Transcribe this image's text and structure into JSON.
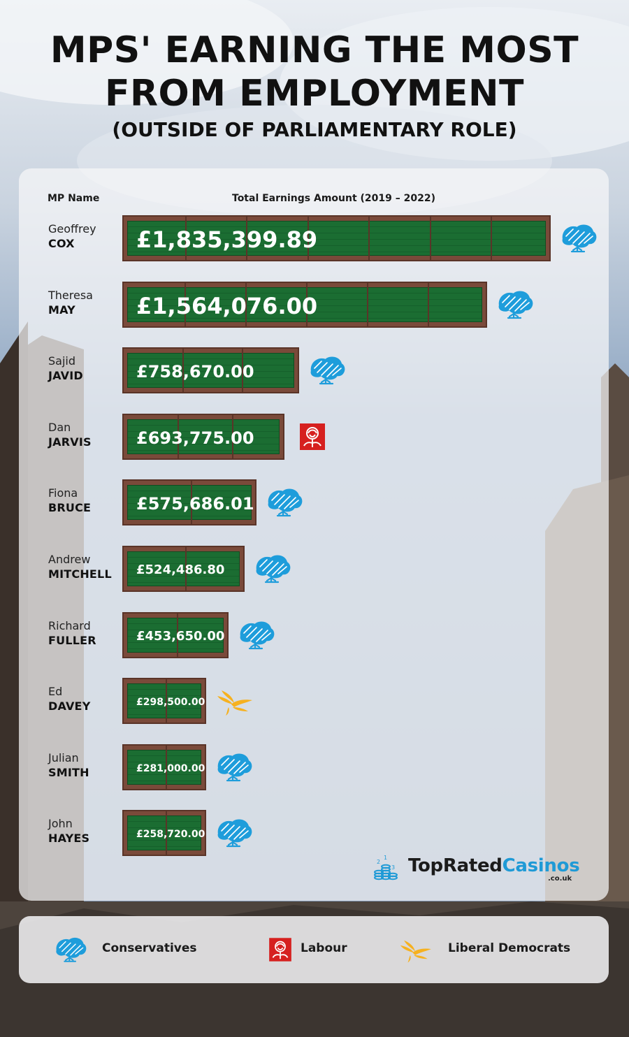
{
  "title_line1": "MPS' EARNING THE MOST",
  "title_line2": "FROM EMPLOYMENT",
  "subtitle": "(OUTSIDE OF PARLIAMENTARY ROLE)",
  "headers": {
    "name": "MP Name",
    "earnings": "Total Earnings Amount (2019 – 2022)"
  },
  "brand": {
    "part1": "TopRated",
    "part2": "Casinos",
    "suffix": ".co.uk"
  },
  "colors": {
    "conservative": "#1e9ddb",
    "labour": "#d6201f",
    "libdem": "#f6b11f",
    "bar_green": "#1b6d32",
    "bar_frame": "#7a4a3a"
  },
  "legend": [
    {
      "party": "conservative",
      "icon": "tree-icon",
      "label": "Conservatives"
    },
    {
      "party": "labour",
      "icon": "rose-icon",
      "label": "Labour"
    },
    {
      "party": "libdem",
      "icon": "bird-icon",
      "label": "Liberal Democrats"
    }
  ],
  "chart_data": {
    "type": "bar",
    "orientation": "horizontal",
    "title": "MPS' EARNING THE MOST FROM EMPLOYMENT",
    "subtitle": "(OUTSIDE OF PARLIAMENTARY ROLE)",
    "xlabel": "Total Earnings Amount (2019 – 2022)",
    "ylabel": "MP Name",
    "xlim": [
      0,
      1835399.89
    ],
    "categories": [
      "Geoffrey COX",
      "Theresa MAY",
      "Sajid JAVID",
      "Dan JARVIS",
      "Fiona BRUCE",
      "Andrew MITCHELL",
      "Richard FULLER",
      "Ed DAVEY",
      "Julian SMITH",
      "John HAYES"
    ],
    "values": [
      1835399.89,
      1564076.0,
      758670.0,
      693775.0,
      575686.01,
      524486.8,
      453650.0,
      298500.0,
      281000.0,
      258720.0
    ],
    "rows": [
      {
        "first": "Geoffrey",
        "last": "COX",
        "value": 1835399.89,
        "label": "£1,835,399.89",
        "party": "conservative"
      },
      {
        "first": "Theresa",
        "last": "MAY",
        "value": 1564076.0,
        "label": "£1,564,076.00",
        "party": "conservative"
      },
      {
        "first": "Sajid",
        "last": "JAVID",
        "value": 758670.0,
        "label": "£758,670.00",
        "party": "conservative"
      },
      {
        "first": "Dan",
        "last": "JARVIS",
        "value": 693775.0,
        "label": "£693,775.00",
        "party": "labour"
      },
      {
        "first": "Fiona",
        "last": "BRUCE",
        "value": 575686.01,
        "label": "£575,686.01",
        "party": "conservative"
      },
      {
        "first": "Andrew",
        "last": "MITCHELL",
        "value": 524486.8,
        "label": "£524,486.80",
        "party": "conservative"
      },
      {
        "first": "Richard",
        "last": "FULLER",
        "value": 453650.0,
        "label": "£453,650.00",
        "party": "conservative"
      },
      {
        "first": "Ed",
        "last": "DAVEY",
        "value": 298500.0,
        "label": "£298,500.00",
        "party": "libdem"
      },
      {
        "first": "Julian",
        "last": "SMITH",
        "value": 281000.0,
        "label": "£281,000.00",
        "party": "conservative"
      },
      {
        "first": "John",
        "last": "HAYES",
        "value": 258720.0,
        "label": "£258,720.00",
        "party": "conservative"
      }
    ]
  }
}
